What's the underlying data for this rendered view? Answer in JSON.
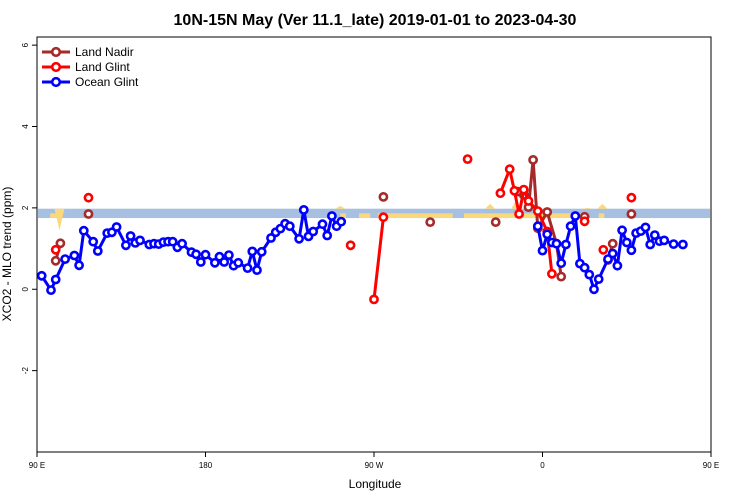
{
  "chart_data": {
    "type": "line",
    "title": "10N-15N May (Ver 11.1_late)   2019-01-01 to 2023-04-30",
    "xlabel": "Longitude",
    "ylabel": "XCO2 - MLO trend (ppm)",
    "xlim": [
      90,
      450
    ],
    "ylim": [
      -4.0,
      6.2
    ],
    "x_ticks": [
      {
        "value": 90,
        "label": "90 E"
      },
      {
        "value": 180,
        "label": "180"
      },
      {
        "value": 270,
        "label": "90 W"
      },
      {
        "value": 360,
        "label": "0"
      },
      {
        "value": 450,
        "label": "90 E"
      },
      {
        "value": 540,
        "label": "180"
      }
    ],
    "y_ticks": [
      {
        "value": -2,
        "label": "-2"
      },
      {
        "value": 0,
        "label": "0"
      },
      {
        "value": 2,
        "label": "2"
      },
      {
        "value": 4,
        "label": "4"
      },
      {
        "value": 6,
        "label": "6"
      }
    ],
    "legend_position": "top-left",
    "band": {
      "y_range": [
        1.75,
        1.98
      ],
      "color": "#a7bfe1",
      "highlight_color": "#f9d97c"
    },
    "series": [
      {
        "name": "Land Nadir",
        "color": "#a52a2a",
        "segments": [
          [
            [
              100,
              0.7
            ],
            [
              102.5,
              1.13
            ]
          ],
          [
            [
              117.5,
              1.85
            ]
          ],
          [
            [
              275,
              2.27
            ]
          ],
          [
            [
              300,
              1.65
            ]
          ],
          [
            [
              335,
              1.65
            ]
          ],
          [
            [
              347,
              2.4
            ],
            [
              350,
              2.32
            ],
            [
              352.5,
              2.02
            ],
            [
              355,
              3.18
            ],
            [
              357.5,
              1.5
            ],
            [
              362.5,
              1.9
            ],
            [
              367.5,
              1.12
            ],
            [
              370,
              0.31
            ]
          ],
          [
            [
              382.5,
              1.78
            ]
          ],
          [
            [
              395,
              0.72
            ],
            [
              397.5,
              1.12
            ]
          ],
          [
            [
              407.5,
              1.85
            ]
          ]
        ]
      },
      {
        "name": "Land Glint",
        "color": "#ff0000",
        "segments": [
          [
            [
              100,
              0.97
            ]
          ],
          [
            [
              117.5,
              2.25
            ]
          ],
          [
            [
              257.5,
              1.08
            ]
          ],
          [
            [
              270,
              -0.25
            ],
            [
              275,
              1.77
            ]
          ],
          [
            [
              320,
              3.2
            ]
          ],
          [
            [
              337.5,
              2.36
            ],
            [
              342.5,
              2.95
            ],
            [
              345,
              2.42
            ],
            [
              347.5,
              1.85
            ],
            [
              350,
              2.45
            ],
            [
              352.5,
              2.17
            ],
            [
              357.5,
              1.92
            ],
            [
              362.5,
              1.42
            ],
            [
              365,
              0.38
            ]
          ],
          [
            [
              382.5,
              1.67
            ]
          ],
          [
            [
              392.5,
              0.97
            ]
          ],
          [
            [
              407.5,
              2.25
            ]
          ]
        ]
      },
      {
        "name": "Ocean Glint",
        "color": "#0000ff",
        "segments": [
          [
            [
              92.5,
              0.33
            ],
            [
              97.5,
              -0.02
            ],
            [
              100,
              0.24
            ],
            [
              105,
              0.74
            ],
            [
              110,
              0.83
            ],
            [
              112.5,
              0.59
            ],
            [
              115,
              1.44
            ],
            [
              120,
              1.17
            ],
            [
              122.5,
              0.94
            ],
            [
              127.5,
              1.38
            ],
            [
              130,
              1.4
            ],
            [
              132.5,
              1.53
            ],
            [
              137.5,
              1.08
            ],
            [
              140,
              1.31
            ],
            [
              142.5,
              1.14
            ],
            [
              145,
              1.2
            ],
            [
              150,
              1.1
            ],
            [
              152.5,
              1.12
            ],
            [
              155,
              1.11
            ],
            [
              157.5,
              1.16
            ],
            [
              160,
              1.17
            ],
            [
              162.5,
              1.17
            ],
            [
              165,
              1.03
            ],
            [
              167.5,
              1.12
            ],
            [
              172.5,
              0.91
            ],
            [
              175,
              0.86
            ],
            [
              177.5,
              0.67
            ],
            [
              180,
              0.85
            ],
            [
              185,
              0.65
            ],
            [
              187.5,
              0.8
            ],
            [
              190,
              0.67
            ],
            [
              192.5,
              0.84
            ],
            [
              195,
              0.58
            ],
            [
              197.5,
              0.65
            ],
            [
              202.5,
              0.52
            ],
            [
              205,
              0.93
            ],
            [
              207.5,
              0.47
            ],
            [
              210,
              0.92
            ],
            [
              215,
              1.26
            ],
            [
              217.5,
              1.4
            ],
            [
              220,
              1.49
            ],
            [
              222.5,
              1.61
            ],
            [
              225,
              1.55
            ],
            [
              230,
              1.24
            ],
            [
              232.5,
              1.95
            ],
            [
              235,
              1.3
            ],
            [
              237.5,
              1.42
            ],
            [
              242.5,
              1.6
            ],
            [
              245,
              1.32
            ],
            [
              247.5,
              1.8
            ],
            [
              250,
              1.55
            ],
            [
              252.5,
              1.66
            ]
          ],
          [
            [
              357.5,
              1.55
            ],
            [
              360,
              0.95
            ],
            [
              362.5,
              1.35
            ],
            [
              365,
              1.15
            ],
            [
              367.5,
              1.12
            ],
            [
              370,
              0.64
            ],
            [
              372.5,
              1.1
            ],
            [
              375,
              1.55
            ],
            [
              377.5,
              1.8
            ],
            [
              380,
              0.63
            ],
            [
              382.5,
              0.53
            ],
            [
              385,
              0.36
            ],
            [
              387.5,
              0.0
            ],
            [
              390,
              0.25
            ],
            [
              395,
              0.74
            ],
            [
              397.5,
              0.88
            ],
            [
              400,
              0.58
            ],
            [
              402.5,
              1.45
            ],
            [
              405,
              1.15
            ],
            [
              407.5,
              0.96
            ],
            [
              410,
              1.38
            ],
            [
              412.5,
              1.43
            ],
            [
              415,
              1.52
            ],
            [
              417.5,
              1.1
            ],
            [
              420,
              1.33
            ],
            [
              422.5,
              1.18
            ],
            [
              425,
              1.2
            ],
            [
              430,
              1.11
            ],
            [
              435,
              1.1
            ]
          ]
        ]
      }
    ]
  }
}
